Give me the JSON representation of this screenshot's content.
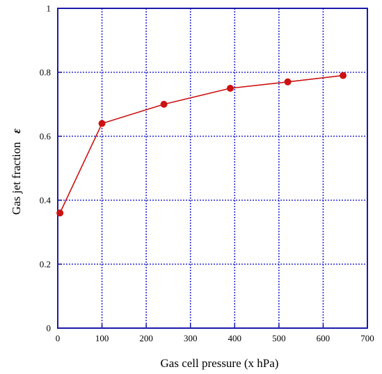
{
  "chart_data": {
    "type": "line",
    "title": "",
    "xlabel": "Gas cell pressure (x hPa)",
    "ylabel": "Gas jet fraction",
    "ylabel_symbol": "ε",
    "xlim": [
      0,
      700
    ],
    "ylim": [
      0,
      1
    ],
    "xticks": [
      0,
      100,
      200,
      300,
      400,
      500,
      600,
      700
    ],
    "yticks": [
      0,
      0.2,
      0.4,
      0.6,
      0.8,
      1
    ],
    "xtick_labels": [
      "0",
      "100",
      "200",
      "300",
      "400",
      "500",
      "600",
      "700"
    ],
    "ytick_labels": [
      "0",
      "0.2",
      "0.4",
      "0.6",
      "0.8",
      "1"
    ],
    "grid": true,
    "legend": "none",
    "colors": {
      "frame": "#1a1aa8",
      "grid": "#2a2ad0",
      "series": "#cc1111"
    },
    "series": [
      {
        "x": [
          5,
          100,
          240,
          390,
          520,
          645
        ],
        "y": [
          0.36,
          0.64,
          0.7,
          0.75,
          0.77,
          0.79
        ]
      }
    ]
  }
}
